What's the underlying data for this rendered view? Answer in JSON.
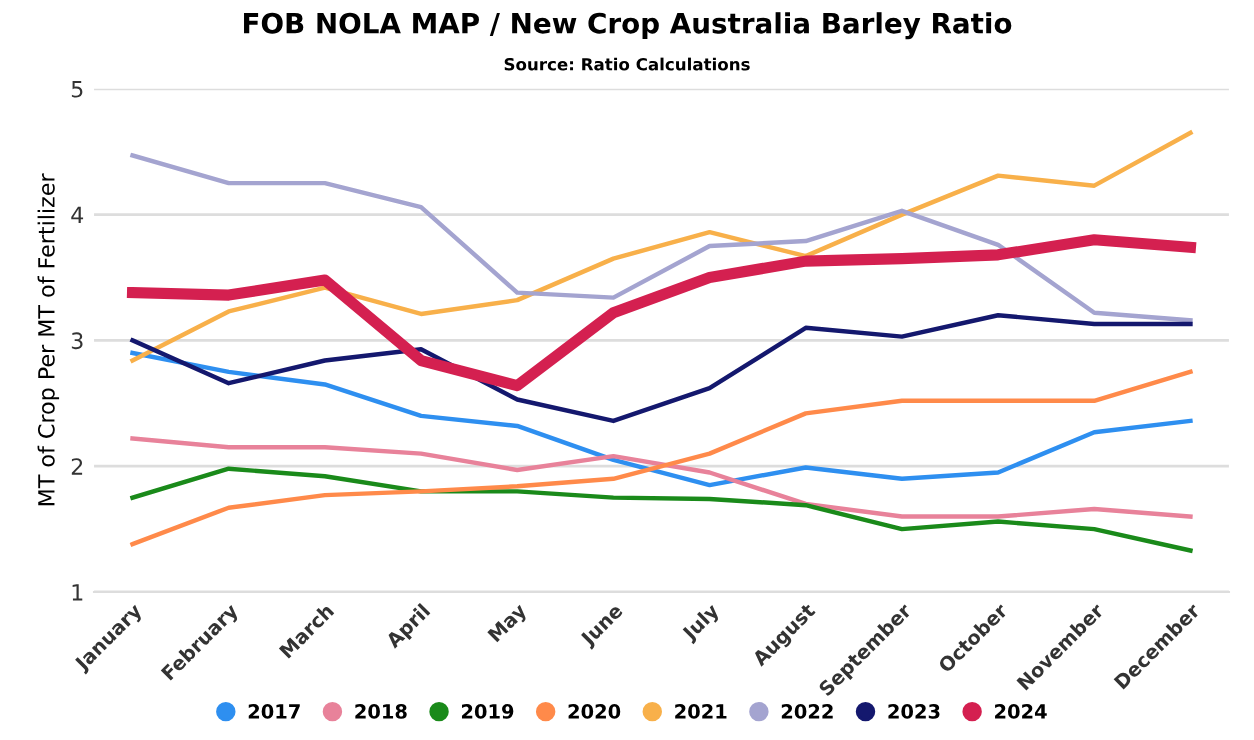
{
  "chart_data": {
    "type": "line",
    "title": "FOB NOLA MAP / New Crop Australia Barley Ratio",
    "subtitle": "Source: Ratio Calculations",
    "ylabel": "MT of Crop Per MT of Fertilizer",
    "categories": [
      "January",
      "February",
      "March",
      "April",
      "May",
      "June",
      "July",
      "August",
      "September",
      "October",
      "November",
      "December"
    ],
    "series": [
      {
        "name": "2017",
        "color": "#2e8ff0",
        "values": [
          2.9,
          2.75,
          2.65,
          2.4,
          2.32,
          2.05,
          1.85,
          1.99,
          1.9,
          1.95,
          2.27,
          2.36
        ]
      },
      {
        "name": "2018",
        "color": "#e8829a",
        "values": [
          2.22,
          2.15,
          2.15,
          2.1,
          1.97,
          2.08,
          1.95,
          1.7,
          1.6,
          1.6,
          1.66,
          1.6
        ]
      },
      {
        "name": "2019",
        "color": "#1a8a1a",
        "values": [
          1.75,
          1.98,
          1.92,
          1.8,
          1.8,
          1.75,
          1.74,
          1.69,
          1.5,
          1.56,
          1.5,
          1.33
        ]
      },
      {
        "name": "2020",
        "color": "#ff8a4a",
        "values": [
          1.38,
          1.67,
          1.77,
          1.8,
          1.84,
          1.9,
          2.1,
          2.42,
          2.52,
          2.52,
          2.52,
          2.75
        ]
      },
      {
        "name": "2021",
        "color": "#f8b04a",
        "values": [
          2.84,
          3.23,
          3.42,
          3.21,
          3.32,
          3.65,
          3.86,
          3.67,
          4.0,
          4.31,
          4.23,
          4.65
        ]
      },
      {
        "name": "2022",
        "color": "#a4a4d0",
        "values": [
          4.47,
          4.25,
          4.25,
          4.06,
          3.38,
          3.34,
          3.75,
          3.79,
          4.03,
          3.76,
          3.22,
          3.16
        ]
      },
      {
        "name": "2023",
        "color": "#14186e",
        "values": [
          3.0,
          2.66,
          2.84,
          2.93,
          2.53,
          2.36,
          2.62,
          3.1,
          3.03,
          3.2,
          3.13,
          3.13
        ]
      },
      {
        "name": "2024",
        "color": "#d42050",
        "values": [
          3.38,
          3.36,
          3.48,
          2.84,
          2.64,
          3.22,
          3.5,
          3.63,
          3.65,
          3.68,
          3.8,
          3.74
        ]
      }
    ],
    "ylim": [
      1,
      5
    ],
    "yticks": [
      1,
      2,
      3,
      4,
      5
    ],
    "grid": "y",
    "legend": "bottom",
    "marker": "none",
    "line_style": "solid"
  }
}
